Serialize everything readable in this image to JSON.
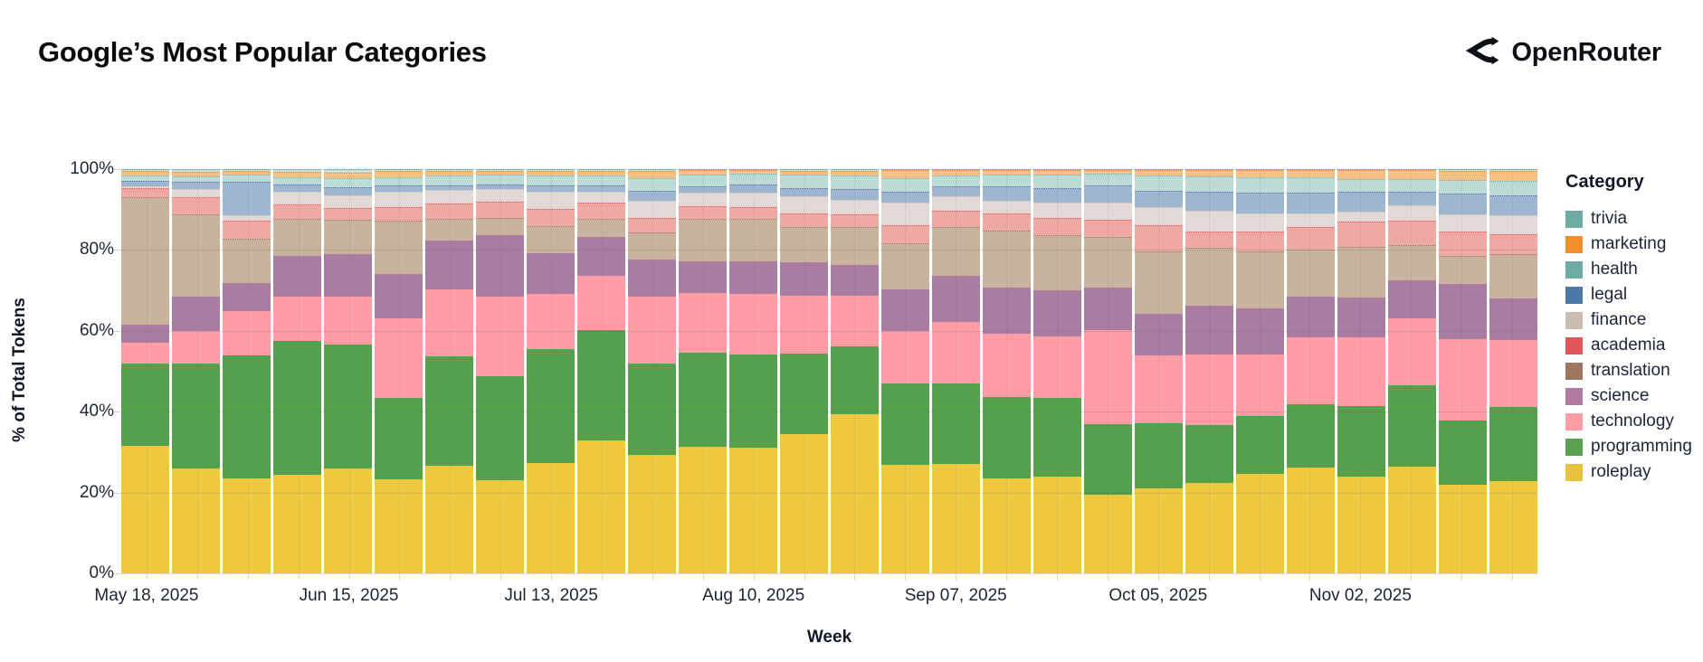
{
  "header": {
    "title": "Google’s Most Popular Categories",
    "brand": "OpenRouter"
  },
  "legend": {
    "title": "Category",
    "items": [
      {
        "label": "trivia",
        "color": "#6CACA5"
      },
      {
        "label": "marketing",
        "color": "#F28E2B"
      },
      {
        "label": "health",
        "color": "#6CACA5"
      },
      {
        "label": "legal",
        "color": "#4E79A7",
        "texture": "dots-light"
      },
      {
        "label": "finance",
        "color": "#C9BCB1",
        "texture": "dots-dark"
      },
      {
        "label": "academia",
        "color": "#E15759"
      },
      {
        "label": "translation",
        "color": "#9D7660"
      },
      {
        "label": "science",
        "color": "#B07AA1"
      },
      {
        "label": "technology",
        "color": "#FF9DA7"
      },
      {
        "label": "programming",
        "color": "#59A14F"
      },
      {
        "label": "roleplay",
        "color": "#E7C23C"
      }
    ]
  },
  "chart_data": {
    "type": "bar",
    "stacked": true,
    "normalized_percent": true,
    "title": "Google’s Most Popular Categories",
    "xlabel": "Week",
    "ylabel": "% of Total Tokens",
    "ylim": [
      0,
      100
    ],
    "grid": true,
    "legend_position": "right",
    "ytick_labels": [
      "0%",
      "20%",
      "40%",
      "60%",
      "80%",
      "100%"
    ],
    "xtick_label_every": 4,
    "xtick_labels": [
      "May 18, 2025",
      "Jun 15, 2025",
      "Jul 13, 2025",
      "Aug 10, 2025",
      "Sep 07, 2025",
      "Oct 05, 2025",
      "Nov 02, 2025"
    ],
    "categories": [
      "May 18, 2025",
      "May 25, 2025",
      "Jun 01, 2025",
      "Jun 08, 2025",
      "Jun 15, 2025",
      "Jun 22, 2025",
      "Jun 29, 2025",
      "Jul 06, 2025",
      "Jul 13, 2025",
      "Jul 20, 2025",
      "Jul 27, 2025",
      "Aug 03, 2025",
      "Aug 10, 2025",
      "Aug 17, 2025",
      "Aug 24, 2025",
      "Aug 31, 2025",
      "Sep 07, 2025",
      "Sep 14, 2025",
      "Sep 21, 2025",
      "Sep 28, 2025",
      "Oct 05, 2025",
      "Oct 12, 2025",
      "Oct 19, 2025",
      "Oct 26, 2025",
      "Nov 02, 2025",
      "Nov 09, 2025",
      "Nov 16, 2025",
      "Nov 23, 2025"
    ],
    "stack_order": "bottom_to_top",
    "series": [
      {
        "name": "roleplay",
        "fill": "#EEC93F",
        "stroke": "#E7C23C",
        "values": [
          31.5,
          26,
          23.5,
          24.5,
          26,
          23.2,
          26.7,
          23,
          27.4,
          33,
          29.2,
          31.4,
          31.2,
          34.5,
          39.4,
          26.9,
          27.1,
          23.5,
          24,
          19.5,
          21.1,
          22.4,
          24.6,
          26.1,
          24,
          26.4,
          22,
          22.8
        ]
      },
      {
        "name": "programming",
        "fill": "#55A04D",
        "stroke": "#59A14F",
        "values": [
          20.5,
          26,
          30.5,
          33,
          30.5,
          20.2,
          27,
          25.8,
          28.1,
          27.2,
          22.8,
          23.2,
          23,
          19.9,
          16.7,
          20,
          19.8,
          20.2,
          19.4,
          17.5,
          16.1,
          14.4,
          14.3,
          15.8,
          17.3,
          20.1,
          15.9,
          18.3
        ]
      },
      {
        "name": "technology",
        "fill": "#FF9CA4",
        "stroke": "#FF9DA7",
        "values": [
          5,
          8,
          10.8,
          11,
          12,
          19.6,
          16.6,
          19.7,
          13.7,
          13.5,
          16.5,
          14.8,
          15,
          14.4,
          12.5,
          13.1,
          15.2,
          15.6,
          15.3,
          23.2,
          16.7,
          17.4,
          15.2,
          16.5,
          17.2,
          16.7,
          20.1,
          16.7
        ]
      },
      {
        "name": "science",
        "fill": "#A87DA1",
        "stroke": "#B07AA1",
        "values": [
          4.5,
          8.5,
          7,
          10,
          10.5,
          11.1,
          12.1,
          15.1,
          10.1,
          9.6,
          9.2,
          7.9,
          7.9,
          8.1,
          7.7,
          10.3,
          11.4,
          11.3,
          11.4,
          10.4,
          10.4,
          12,
          11.5,
          10.1,
          9.7,
          9.4,
          13.6,
          10.2
        ]
      },
      {
        "name": "translation",
        "fill": "#C9B29E",
        "stroke": "#9D7660",
        "values": [
          31.5,
          20.4,
          10.9,
          9.2,
          8.5,
          13.2,
          5.3,
          4.4,
          6.6,
          4.3,
          6.7,
          10.3,
          10.5,
          8.9,
          9.4,
          11.3,
          12.2,
          14.3,
          13.5,
          12.7,
          15.4,
          14.4,
          14.1,
          11.6,
          12.6,
          8.7,
          7,
          11
        ]
      },
      {
        "name": "academia",
        "fill": "#F0A8A5",
        "stroke": "#E15759",
        "values": [
          2.4,
          4.1,
          4.5,
          3.7,
          3,
          3.4,
          3.7,
          4,
          4.2,
          4.1,
          3.6,
          3.3,
          3,
          3.3,
          3.1,
          4.5,
          4.1,
          4.2,
          4.3,
          4.3,
          6.4,
          4,
          4.9,
          5.6,
          6.2,
          5.9,
          6,
          5
        ]
      },
      {
        "name": "finance",
        "fill": "#E2D9D6",
        "stroke": "#C9BCB1",
        "texture": "finance",
        "values": [
          0.3,
          2.1,
          1.3,
          3.1,
          3,
          3.7,
          3.4,
          3,
          4.3,
          2.8,
          4.1,
          3.4,
          3.5,
          4.1,
          3.6,
          5.6,
          3.4,
          3.2,
          3.8,
          4.2,
          4.5,
          5.2,
          4.5,
          3.4,
          2.4,
          3.9,
          4.2,
          4.5
        ]
      },
      {
        "name": "legal",
        "fill": "#9EB6CF",
        "stroke": "#4E79A7",
        "texture": "legal",
        "values": [
          1.5,
          1.8,
          8.4,
          1.8,
          2,
          1.5,
          1.2,
          1.3,
          1.6,
          1.5,
          2.6,
          1.5,
          2.2,
          2.2,
          2.8,
          2.8,
          2.6,
          3.5,
          3.7,
          4.2,
          4.1,
          4.7,
          5,
          5,
          5.1,
          3.4,
          5.1,
          5
        ]
      },
      {
        "name": "health",
        "fill": "#BCDAD6",
        "stroke": "#6CACA5",
        "values": [
          1.2,
          1.3,
          1.8,
          1.7,
          2.2,
          2.2,
          2.5,
          2.3,
          2.5,
          2.5,
          3,
          2.8,
          2.5,
          3.2,
          3.2,
          3.3,
          2.6,
          2.8,
          3.2,
          2.8,
          3.7,
          3.8,
          4,
          4,
          3,
          3,
          3.4,
          3.5
        ]
      },
      {
        "name": "marketing",
        "fill": "#F8C083",
        "stroke": "#F28E2B",
        "values": [
          1.1,
          1.2,
          0.8,
          1.4,
          1.5,
          1.4,
          1.1,
          1,
          1,
          1,
          1.8,
          1.1,
          0.9,
          1,
          1.2,
          2,
          1.4,
          1.2,
          1.2,
          1,
          1.3,
          1.4,
          1.6,
          1.6,
          2.2,
          2.2,
          2.3,
          2.5
        ]
      },
      {
        "name": "trivia",
        "fill": "#C7E0DD",
        "stroke": "#6CACA5",
        "values": [
          0.5,
          0.6,
          0.5,
          0.6,
          0.8,
          0.5,
          0.4,
          0.4,
          0.5,
          0.5,
          0.5,
          0.3,
          0.3,
          0.4,
          0.4,
          0.2,
          0.2,
          0.2,
          0.2,
          0.2,
          0.3,
          0.3,
          0.3,
          0.3,
          0.3,
          0.3,
          0.4,
          0.5
        ]
      }
    ]
  }
}
